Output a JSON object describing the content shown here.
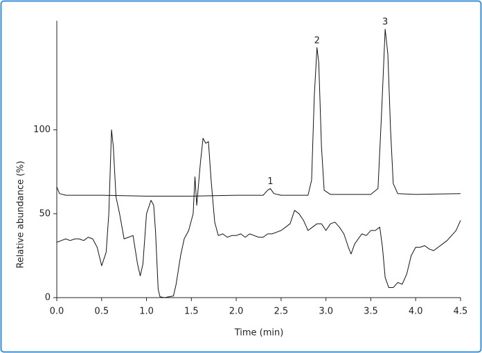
{
  "chart_data": {
    "type": "line",
    "xlabel": "Time (min)",
    "ylabel": "Relative abundance (%)",
    "xlim": [
      0,
      4.5
    ],
    "ylim": [
      0,
      165
    ],
    "xticks": [
      {
        "value": 0,
        "label": "0.0"
      },
      0.5,
      {
        "value": 1,
        "label": "1.0"
      },
      1.5,
      {
        "value": 2,
        "label": "2.0"
      },
      2.5,
      {
        "value": 3,
        "label": "3.0"
      },
      3.5,
      {
        "value": 4,
        "label": "4.0"
      },
      4.5
    ],
    "yticks": [
      0,
      50,
      100
    ],
    "series": [
      {
        "color": "#111111",
        "x": [
          0,
          0.03,
          0.1,
          0.5,
          1.0,
          1.5,
          2.0,
          2.3,
          2.35,
          2.38,
          2.42,
          2.5,
          2.8,
          2.84,
          2.87,
          2.9,
          2.92,
          2.95,
          2.98,
          3.05,
          3.5,
          3.58,
          3.62,
          3.66,
          3.69,
          3.72,
          3.75,
          3.8,
          4.0,
          4.5
        ],
        "values": [
          66,
          62,
          61,
          61,
          60.5,
          60.5,
          61,
          61,
          64,
          65,
          62,
          61,
          61,
          70,
          120,
          149,
          140,
          90,
          64,
          61.5,
          61.5,
          65,
          110,
          160,
          145,
          100,
          68,
          62,
          61.5,
          62
        ]
      },
      {
        "color": "#111111",
        "x": [
          0,
          0.05,
          0.1,
          0.15,
          0.2,
          0.25,
          0.3,
          0.35,
          0.4,
          0.45,
          0.5,
          0.55,
          0.58,
          0.61,
          0.63,
          0.66,
          0.7,
          0.75,
          0.8,
          0.85,
          0.9,
          0.93,
          0.96,
          1.0,
          1.05,
          1.08,
          1.1,
          1.13,
          1.15,
          1.2,
          1.25,
          1.3,
          1.33,
          1.38,
          1.42,
          1.47,
          1.52,
          1.54,
          1.56,
          1.6,
          1.63,
          1.66,
          1.69,
          1.72,
          1.76,
          1.8,
          1.85,
          1.9,
          1.95,
          2.0,
          2.05,
          2.1,
          2.15,
          2.2,
          2.25,
          2.3,
          2.35,
          2.4,
          2.45,
          2.5,
          2.55,
          2.6,
          2.65,
          2.7,
          2.75,
          2.8,
          2.85,
          2.9,
          2.95,
          3.0,
          3.05,
          3.1,
          3.15,
          3.2,
          3.25,
          3.28,
          3.32,
          3.4,
          3.45,
          3.5,
          3.55,
          3.6,
          3.63,
          3.66,
          3.7,
          3.75,
          3.8,
          3.85,
          3.9,
          3.95,
          4.0,
          4.05,
          4.1,
          4.15,
          4.2,
          4.25,
          4.3,
          4.35,
          4.4,
          4.45,
          4.5
        ],
        "values": [
          33,
          34,
          35,
          34,
          35,
          35,
          34,
          36,
          35,
          30,
          19,
          27,
          50,
          100,
          90,
          60,
          50,
          35,
          36,
          37,
          20,
          13,
          20,
          50,
          58,
          55,
          40,
          5,
          0.5,
          0,
          0.5,
          1,
          8,
          25,
          35,
          40,
          50,
          72,
          55,
          80,
          95,
          92,
          93,
          70,
          45,
          37,
          38,
          36,
          37,
          37,
          38,
          36,
          38,
          37,
          36,
          36,
          38,
          38,
          39,
          40,
          42,
          44,
          52,
          50,
          46,
          40,
          42,
          44,
          44,
          40,
          44,
          45,
          42,
          38,
          30,
          26,
          32,
          38,
          37,
          40,
          40,
          42,
          30,
          12,
          6,
          6,
          9,
          8,
          14,
          25,
          30,
          30,
          31,
          29,
          28,
          30,
          32,
          34,
          37,
          40,
          46
        ]
      }
    ],
    "annotations": [
      {
        "text": "1",
        "x": 2.38,
        "y": 65
      },
      {
        "text": "2",
        "x": 2.9,
        "y": 149
      },
      {
        "text": "3",
        "x": 3.66,
        "y": 160
      }
    ]
  }
}
